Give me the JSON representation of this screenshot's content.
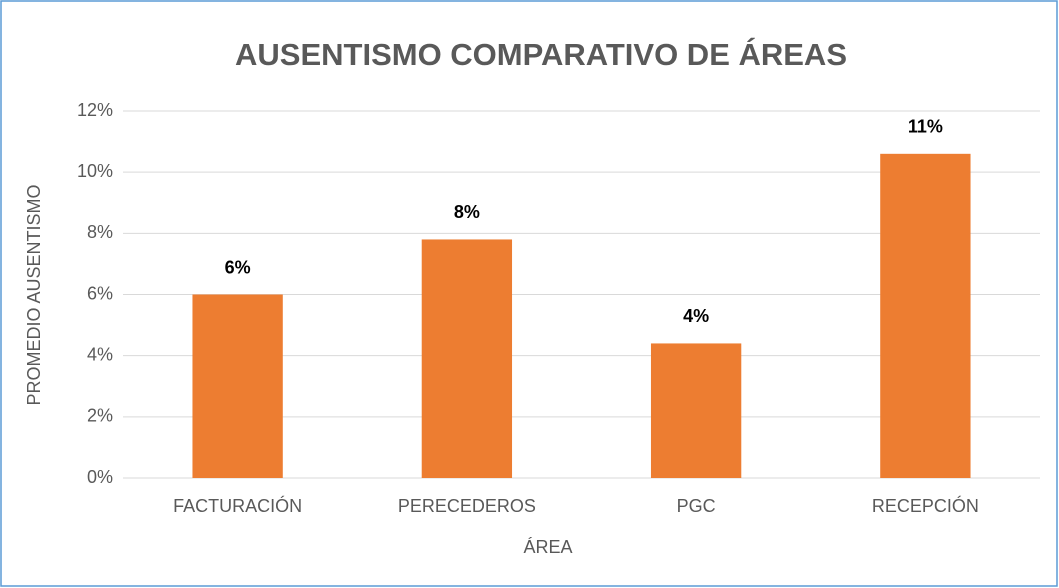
{
  "chart_data": {
    "type": "bar",
    "title": "AUSENTISMO COMPARATIVO DE ÁREAS",
    "x_label": "ÁREA",
    "y_label": "PROMEDIO AUSENTISMO",
    "categories": [
      "FACTURACIÓN",
      "PERECEDEROS",
      "PGC",
      "RECEPCIÓN"
    ],
    "values": [
      6.0,
      7.8,
      4.4,
      10.6
    ],
    "value_labels": [
      "6%",
      "8%",
      "4%",
      "11%"
    ],
    "color": "#ed7d31",
    "ylim": [
      0,
      12
    ],
    "yticks": [
      {
        "value": 0,
        "label": "0%"
      },
      {
        "value": 2,
        "label": "2%"
      },
      {
        "value": 4,
        "label": "4%"
      },
      {
        "value": 6,
        "label": "6%"
      },
      {
        "value": 8,
        "label": "8%"
      },
      {
        "value": 10,
        "label": "10%"
      },
      {
        "value": 12,
        "label": "12%"
      }
    ],
    "grid": true
  }
}
